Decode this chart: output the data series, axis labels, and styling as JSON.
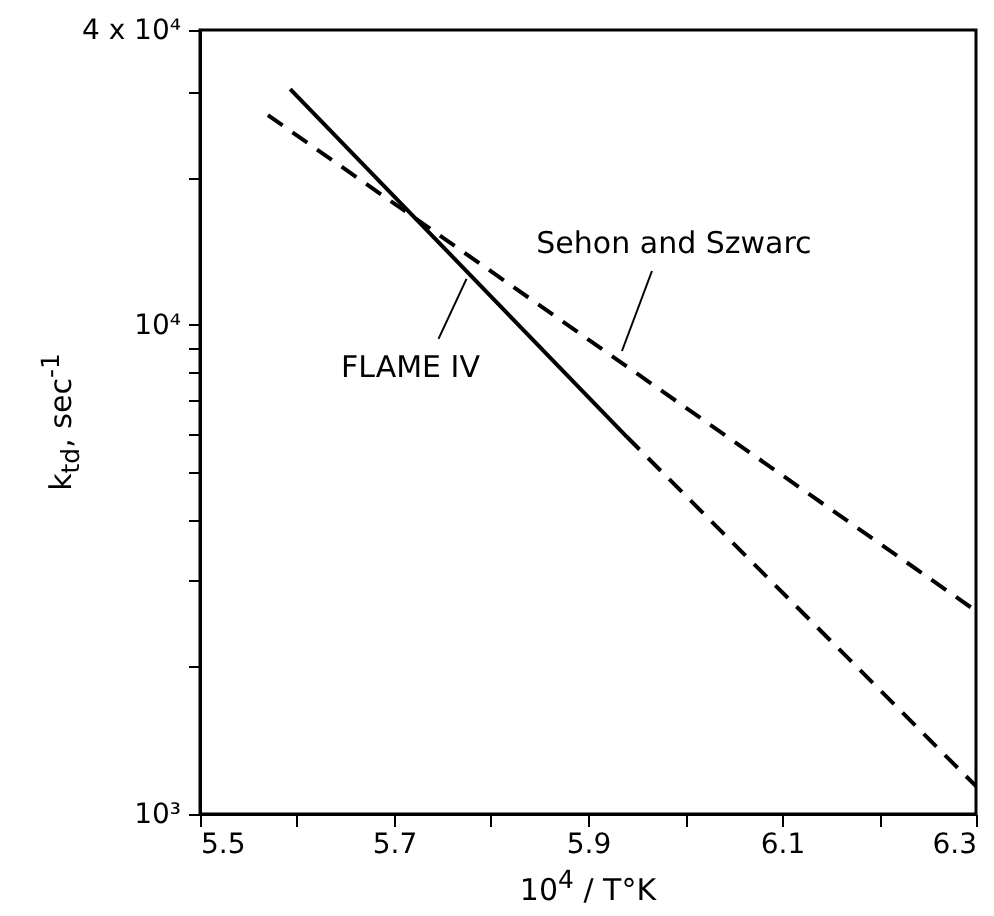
{
  "chart_data": {
    "type": "line",
    "xlabel": "10$^{4}$ / T°K",
    "ylabel": "k$_{td}$, sec$^{-1}$",
    "log": true,
    "line_style": "solid",
    "xlim": [
      5.5,
      6.3
    ],
    "xticks": [
      5.5,
      {
        "value": 5.6,
        "label": null
      },
      5.7,
      {
        "value": 5.8,
        "label": null
      },
      5.9,
      {
        "value": 6.0,
        "label": null
      },
      6.1,
      {
        "value": 6.2,
        "label": null
      },
      6.3
    ],
    "ylim": [
      1000,
      40000
    ],
    "yticks": [
      {
        "value": 1000,
        "label": "10³"
      },
      {
        "value": 2000,
        "label": null
      },
      {
        "value": 3000,
        "label": null
      },
      {
        "value": 4000,
        "label": null
      },
      {
        "value": 5000,
        "label": null
      },
      {
        "value": 6000,
        "label": null
      },
      {
        "value": 7000,
        "label": null
      },
      {
        "value": 8000,
        "label": null
      },
      {
        "value": 9000,
        "label": null
      },
      {
        "value": 10000,
        "label": "10⁴"
      },
      {
        "value": 20000,
        "label": null
      },
      {
        "value": 30000,
        "label": null
      },
      {
        "value": 40000,
        "label": "4 x 10⁴"
      }
    ],
    "series": [
      {
        "name": "FLAME IV",
        "color": "#000000",
        "x": [
          5.593,
          5.94
        ],
        "values": [
          30300,
          5900
        ]
      },
      {
        "color": "#000000",
        "line_style": "dashed",
        "x": [
          5.94,
          6.3
        ],
        "values": [
          5900,
          1140
        ]
      },
      {
        "name": "Sehon and Szwarc",
        "color": "#000000",
        "line_style": "dashed",
        "x": [
          5.57,
          6.3
        ],
        "values": [
          26800,
          2600
        ]
      }
    ]
  }
}
